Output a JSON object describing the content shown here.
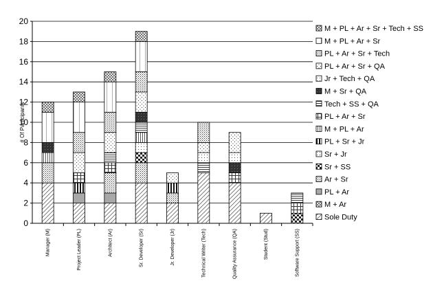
{
  "chart_data": {
    "type": "bar",
    "stacked": true,
    "ylabel": "# Of Participants",
    "xlabel": "",
    "ylim": [
      0,
      20
    ],
    "yticks": [
      0,
      2,
      4,
      6,
      8,
      10,
      12,
      14,
      16,
      18,
      20
    ],
    "grid": true,
    "legend_position": "right",
    "categories": [
      "Manager (M)",
      "Project Leader (PL)",
      "Architect (Ar)",
      "Sr. Developer (Sr)",
      "Jr. Developer (Jr)",
      "Technical Writer (Tech)",
      "Quality Assurance (QA)",
      "Student (Stud)",
      "Software Support (SS)"
    ],
    "series": [
      {
        "name": "Sole Duty",
        "pattern": "diag-light",
        "values": [
          4,
          2,
          2,
          4,
          2,
          5,
          4,
          1,
          0
        ]
      },
      {
        "name": "M + Ar",
        "pattern": "hatch-box",
        "values": [
          0,
          0,
          0,
          0,
          0,
          0,
          0,
          0,
          0
        ]
      },
      {
        "name": "PL + Ar",
        "pattern": "gray-medium",
        "values": [
          0,
          1,
          1,
          0,
          0,
          0,
          0,
          0,
          0
        ]
      },
      {
        "name": "Ar + Sr",
        "pattern": "dots-dense",
        "values": [
          2,
          0,
          2,
          2,
          1,
          0,
          0,
          0,
          0
        ]
      },
      {
        "name": "Sr + SS",
        "pattern": "checker",
        "values": [
          0,
          0,
          0,
          1,
          0,
          0,
          0,
          0,
          1
        ]
      },
      {
        "name": "Sr + Jr",
        "pattern": "dots-light",
        "values": [
          0,
          0,
          0,
          1,
          0,
          0,
          0,
          0,
          0
        ]
      },
      {
        "name": "PL + Sr + Jr",
        "pattern": "vert-bold",
        "values": [
          0,
          1,
          0,
          0,
          1,
          0,
          0,
          0,
          0
        ]
      },
      {
        "name": "M + PL + Ar",
        "pattern": "vert-thin",
        "values": [
          1,
          0,
          0,
          1,
          0,
          0,
          0,
          0,
          0
        ]
      },
      {
        "name": "PL + Ar + Sr",
        "pattern": "horiz-vert",
        "values": [
          0,
          1,
          1,
          0,
          0,
          0,
          1,
          0,
          1
        ]
      },
      {
        "name": "Tech + SS + QA",
        "pattern": "horiz-lines",
        "values": [
          0,
          0,
          1,
          1,
          0,
          1,
          0,
          0,
          1
        ]
      },
      {
        "name": "M + Sr + QA",
        "pattern": "dark",
        "values": [
          1,
          0,
          0,
          1,
          0,
          0,
          1,
          0,
          0
        ]
      },
      {
        "name": "Jr + Tech + QA",
        "pattern": "dots-light",
        "values": [
          0,
          0,
          0,
          0,
          0,
          1,
          1,
          0,
          0
        ]
      },
      {
        "name": "PL + Ar + Sr + QA",
        "pattern": "dots-sparse",
        "values": [
          0,
          2,
          2,
          2,
          1,
          1,
          2,
          0,
          0
        ]
      },
      {
        "name": "PL + Ar + Sr + Tech",
        "pattern": "dots-dense",
        "values": [
          0,
          2,
          2,
          2,
          0,
          2,
          0,
          0,
          0
        ]
      },
      {
        "name": "M + PL + Ar + Sr",
        "pattern": "vert-sparse",
        "values": [
          3,
          3,
          3,
          3,
          0,
          0,
          0,
          0,
          0
        ]
      },
      {
        "name": "M + PL + Ar + Sr + Tech + SS",
        "pattern": "hatch-box",
        "values": [
          1,
          1,
          1,
          1,
          0,
          0,
          0,
          0,
          0
        ]
      }
    ]
  }
}
